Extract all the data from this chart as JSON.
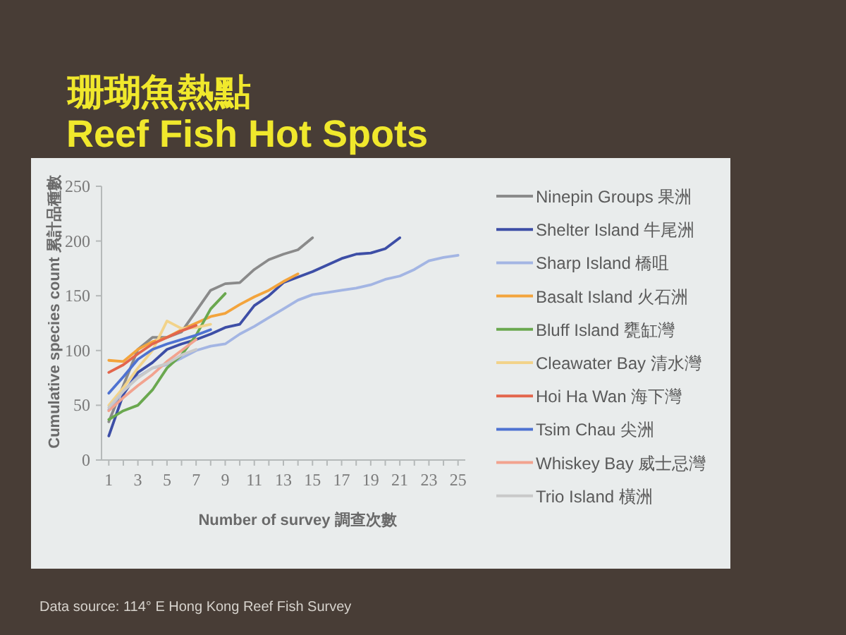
{
  "chart_data": {
    "type": "line",
    "title": "珊瑚魚熱點",
    "subtitle": "Reef Fish Hot Spots",
    "xlabel": "Number of survey 調查次數",
    "ylabel": "Cumulative species count 累計品種數",
    "annotations": [
      "Data source: 114° E Hong Kong Reef Fish Survey"
    ],
    "x": [
      1,
      2,
      3,
      4,
      5,
      6,
      7,
      8,
      9,
      10,
      11,
      12,
      13,
      14,
      15,
      16,
      17,
      18,
      19,
      20,
      21,
      22,
      23,
      24,
      25
    ],
    "xlim": [
      0.5,
      25.5
    ],
    "xticks": [
      1,
      {
        "value": 2,
        "label": null
      },
      3,
      {
        "value": 4,
        "label": null
      },
      5,
      {
        "value": 6,
        "label": null
      },
      7,
      {
        "value": 8,
        "label": null
      },
      9,
      {
        "value": 10,
        "label": null
      },
      11,
      {
        "value": 12,
        "label": null
      },
      13,
      {
        "value": 14,
        "label": null
      },
      15,
      {
        "value": 16,
        "label": null
      },
      17,
      {
        "value": 18,
        "label": null
      },
      19,
      {
        "value": 20,
        "label": null
      },
      21,
      {
        "value": 22,
        "label": null
      },
      23,
      {
        "value": 24,
        "label": null
      },
      25
    ],
    "ylim": [
      0,
      250
    ],
    "yticks": [
      0,
      50,
      100,
      150,
      200,
      250
    ],
    "grid": false,
    "legend": "right",
    "marker": "none",
    "line_style": "solid",
    "series": [
      {
        "name": "Ninepin Groups 果洲",
        "color": "#8a8a8a",
        "values": [
          35,
          68,
          101,
          112,
          112,
          117,
          136,
          155,
          161,
          162,
          174,
          183,
          188,
          192,
          203,
          null,
          null,
          null,
          null,
          null,
          null,
          null,
          null,
          null,
          null
        ]
      },
      {
        "name": "Shelter Island 牛尾洲",
        "color": "#3d4ea6",
        "values": [
          22,
          60,
          80,
          89,
          101,
          106,
          110,
          115,
          121,
          124,
          141,
          150,
          162,
          167,
          172,
          178,
          184,
          188,
          189,
          193,
          203,
          null,
          null,
          null,
          null
        ]
      },
      {
        "name": "Sharp Island 橋咀",
        "color": "#a3b5e3",
        "values": [
          46,
          63,
          76,
          84,
          87,
          93,
          100,
          104,
          106,
          115,
          122,
          130,
          138,
          146,
          151,
          153,
          155,
          157,
          160,
          165,
          168,
          174,
          182,
          185,
          187
        ]
      },
      {
        "name": "Basalt Island 火石洲",
        "color": "#f3a43c",
        "values": [
          91,
          90,
          101,
          108,
          112,
          119,
          125,
          131,
          134,
          142,
          149,
          155,
          163,
          170,
          null,
          null,
          null,
          null,
          null,
          null,
          null,
          null,
          null,
          null,
          null
        ]
      },
      {
        "name": "Bluff Island 甕缸灣",
        "color": "#6aa84f",
        "values": [
          37,
          45,
          50,
          64,
          84,
          96,
          114,
          138,
          152,
          null,
          null,
          null,
          null,
          null,
          null,
          null,
          null,
          null,
          null,
          null,
          null,
          null,
          null,
          null,
          null
        ]
      },
      {
        "name": "Cleawater Bay 清水灣",
        "color": "#f2d38a",
        "values": [
          50,
          66,
          84,
          100,
          127,
          120,
          121,
          124,
          null,
          null,
          null,
          null,
          null,
          null,
          null,
          null,
          null,
          null,
          null,
          null,
          null,
          null,
          null,
          null,
          null
        ]
      },
      {
        "name": "Hoi Ha Wan 海下灣",
        "color": "#e3664c",
        "values": [
          80,
          87,
          97,
          106,
          112,
          118,
          123,
          null,
          null,
          null,
          null,
          null,
          null,
          null,
          null,
          null,
          null,
          null,
          null,
          null,
          null,
          null,
          null,
          null,
          null
        ]
      },
      {
        "name": "Tsim Chau 尖洲",
        "color": "#4e72d1",
        "values": [
          61,
          76,
          92,
          101,
          106,
          110,
          114,
          119,
          null,
          null,
          null,
          null,
          null,
          null,
          null,
          null,
          null,
          null,
          null,
          null,
          null,
          null,
          null,
          null,
          null
        ]
      },
      {
        "name": "Whiskey Bay 威士忌灣",
        "color": "#f2a38f",
        "values": [
          45,
          57,
          68,
          78,
          90,
          100,
          110,
          null,
          null,
          null,
          null,
          null,
          null,
          null,
          null,
          null,
          null,
          null,
          null,
          null,
          null,
          null,
          null,
          null,
          null
        ]
      },
      {
        "name": "Trio Island 橫洲",
        "color": "#c9c9c9",
        "values": [
          48,
          63,
          75,
          84,
          88,
          96,
          101,
          null,
          null,
          null,
          null,
          null,
          null,
          null,
          null,
          null,
          null,
          null,
          null,
          null,
          null,
          null,
          null,
          null,
          null
        ]
      }
    ]
  }
}
